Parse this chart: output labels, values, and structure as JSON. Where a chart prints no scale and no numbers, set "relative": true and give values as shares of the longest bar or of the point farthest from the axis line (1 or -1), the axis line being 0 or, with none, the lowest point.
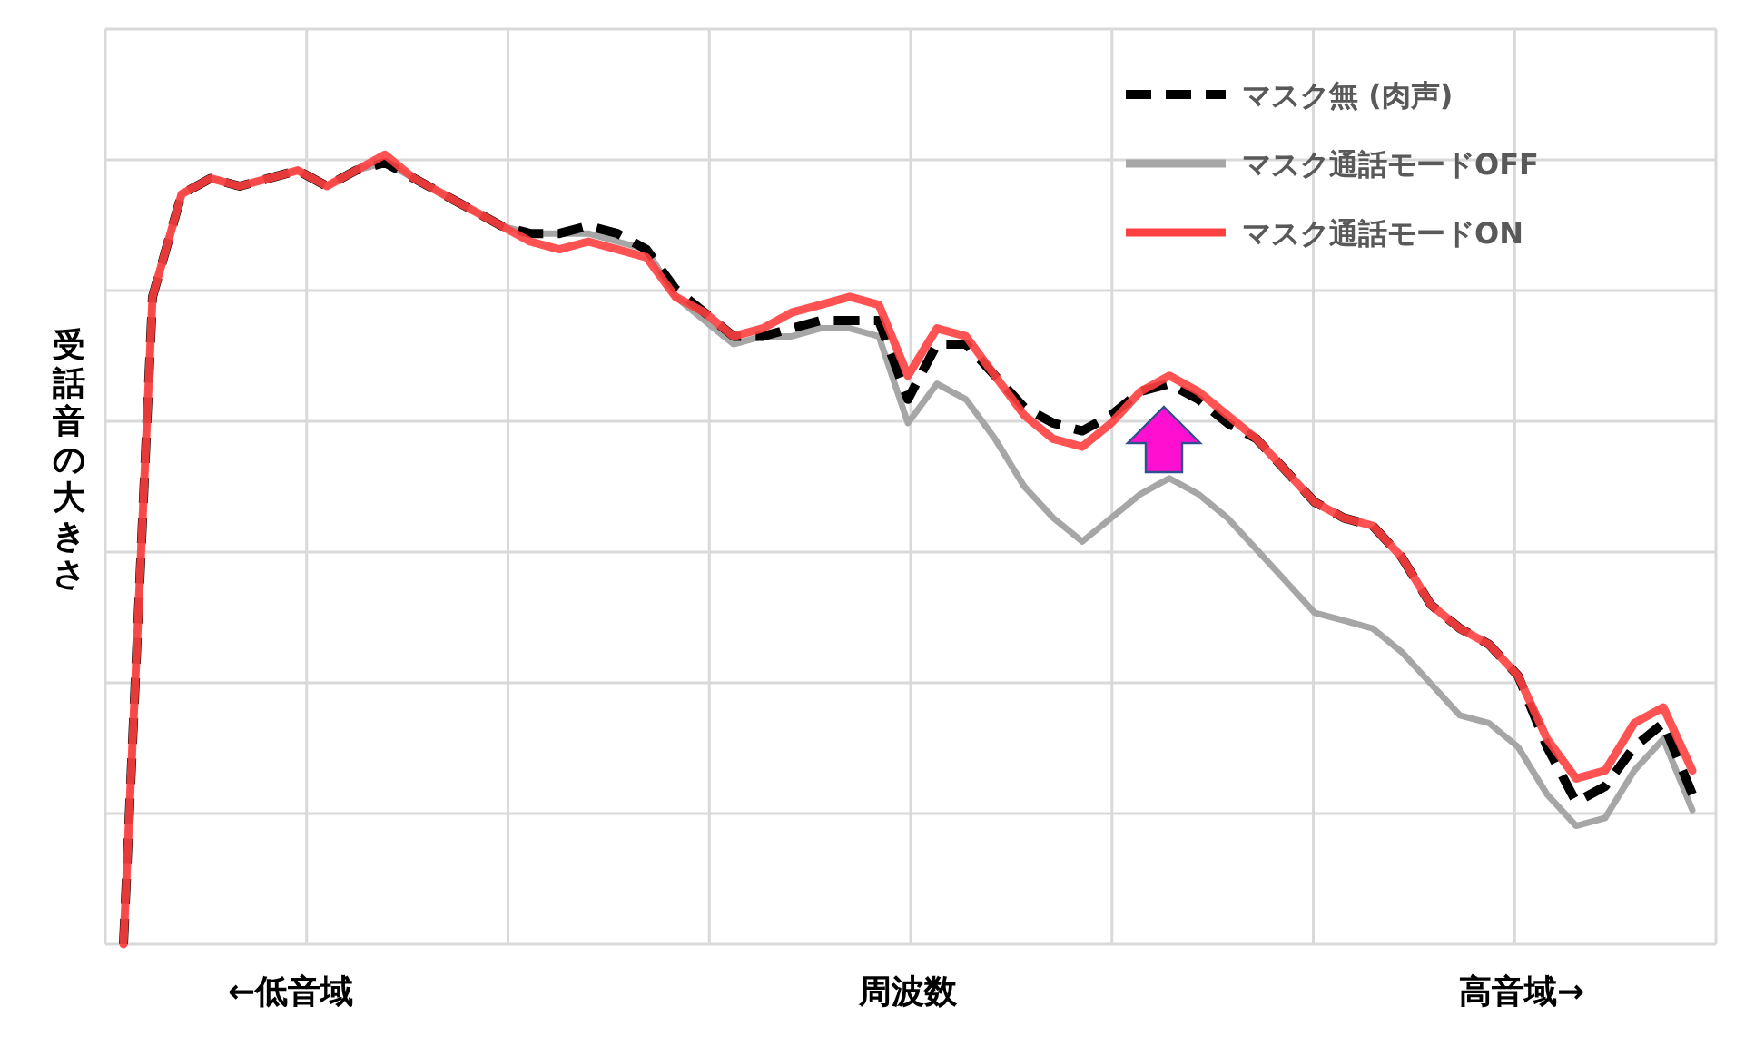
{
  "chart_data": {
    "type": "line",
    "relative": true,
    "grid": true,
    "legend": "top right",
    "ylabel": "受話音の大きさ",
    "xlabel": "周波数",
    "annotations": [
      "←低音域",
      "高音域→"
    ],
    "categories": [
      null,
      null,
      null,
      null,
      null,
      null,
      null,
      null,
      null,
      null,
      null,
      null,
      null,
      null,
      null,
      null,
      null,
      null,
      null,
      null,
      null,
      null,
      null,
      null,
      null,
      null,
      null,
      null,
      null,
      null,
      null,
      null,
      null,
      null,
      null,
      null,
      null,
      null,
      null,
      null,
      null,
      null,
      null,
      null,
      null,
      null,
      null,
      null,
      null,
      null,
      null,
      null,
      null,
      null,
      null
    ],
    "series": [
      {
        "name": "マスク無 (肉声)",
        "color": "#000000",
        "line_style": "dashed",
        "values": [
          0,
          0.82,
          0.95,
          0.97,
          0.96,
          0.97,
          0.98,
          0.96,
          0.98,
          0.99,
          0.97,
          0.95,
          0.93,
          0.91,
          0.9,
          0.9,
          0.91,
          0.9,
          0.88,
          0.83,
          0.8,
          0.77,
          0.77,
          0.78,
          0.79,
          0.79,
          0.79,
          0.69,
          0.76,
          0.76,
          0.72,
          0.68,
          0.66,
          0.65,
          0.67,
          0.7,
          0.71,
          0.69,
          0.66,
          0.64,
          0.6,
          0.56,
          0.54,
          0.53,
          0.49,
          0.43,
          0.4,
          0.38,
          0.34,
          0.25,
          0.18,
          0.2,
          0.25,
          0.28,
          0.19
        ]
      },
      {
        "name": "マスク通話モードOFF",
        "color": "#a6a6a6",
        "line_style": "solid",
        "values": [
          0,
          0.82,
          0.95,
          0.97,
          0.96,
          0.97,
          0.98,
          0.96,
          0.98,
          0.99,
          0.97,
          0.95,
          0.93,
          0.91,
          0.9,
          0.9,
          0.9,
          0.89,
          0.88,
          0.82,
          0.79,
          0.76,
          0.77,
          0.77,
          0.78,
          0.78,
          0.77,
          0.66,
          0.71,
          0.69,
          0.64,
          0.58,
          0.54,
          0.51,
          0.54,
          0.57,
          0.59,
          0.57,
          0.54,
          0.5,
          0.46,
          0.42,
          0.41,
          0.4,
          0.37,
          0.33,
          0.29,
          0.28,
          0.25,
          0.19,
          0.15,
          0.16,
          0.22,
          0.26,
          0.17
        ]
      },
      {
        "name": "マスク通話モードON",
        "color": "#ff4040",
        "line_style": "solid",
        "values": [
          0,
          0.82,
          0.95,
          0.97,
          0.96,
          0.97,
          0.98,
          0.96,
          0.98,
          1.0,
          0.97,
          0.95,
          0.93,
          0.91,
          0.89,
          0.88,
          0.89,
          0.88,
          0.87,
          0.82,
          0.8,
          0.77,
          0.78,
          0.8,
          0.81,
          0.82,
          0.81,
          0.72,
          0.78,
          0.77,
          0.72,
          0.67,
          0.64,
          0.63,
          0.66,
          0.7,
          0.72,
          0.7,
          0.67,
          0.64,
          0.6,
          0.56,
          0.54,
          0.53,
          0.49,
          0.43,
          0.4,
          0.38,
          0.34,
          0.26,
          0.21,
          0.22,
          0.28,
          0.3,
          0.22
        ]
      }
    ]
  }
}
